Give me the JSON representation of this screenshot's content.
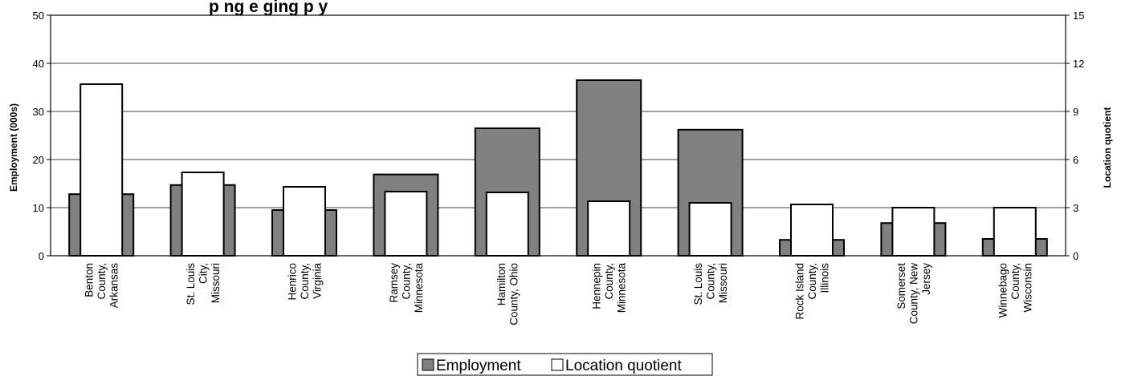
{
  "colors": {
    "employment_fill": "#808080",
    "lq_fill": "#ffffff",
    "bar_stroke": "#000000",
    "grid": "#000000"
  },
  "chart_data": {
    "type": "bar",
    "title": "p ng e          ging     p y",
    "ylabel": "Employment (000s)",
    "y2label": "Location quotient",
    "ylim": [
      0,
      50
    ],
    "y2lim": [
      0,
      15
    ],
    "yticks": [
      0,
      10,
      20,
      30,
      40,
      50
    ],
    "y2ticks": [
      0,
      3,
      6,
      9,
      12,
      15
    ],
    "grid": true,
    "legend_position": "bottom",
    "categories": [
      [
        "Benton",
        "County,",
        "Arkansas"
      ],
      [
        "St. Louis",
        "City,",
        "Missouri"
      ],
      [
        "Henrico",
        "County,",
        "Virginia"
      ],
      [
        "Ramsey",
        "County,",
        "Minnesota"
      ],
      [
        "Hamilton",
        "County, Ohio"
      ],
      [
        "Hennepin",
        "County,",
        "Minnesota"
      ],
      [
        "St. Louis",
        "County,",
        "Missouri"
      ],
      [
        "Rock Island",
        "County,",
        "Illinois"
      ],
      [
        "Somerset",
        "County, New",
        "Jersey"
      ],
      [
        "Winnebago",
        "County,",
        "Wisconsin"
      ]
    ],
    "series": [
      {
        "name": "Employment",
        "axis": "left",
        "values": [
          12.8,
          14.7,
          9.5,
          16.9,
          26.5,
          36.5,
          26.2,
          3.3,
          6.8,
          3.5
        ]
      },
      {
        "name": "Location quotient",
        "axis": "right",
        "values": [
          10.7,
          5.2,
          4.3,
          4.0,
          3.95,
          3.4,
          3.3,
          3.2,
          3.0,
          3.0
        ]
      }
    ]
  }
}
